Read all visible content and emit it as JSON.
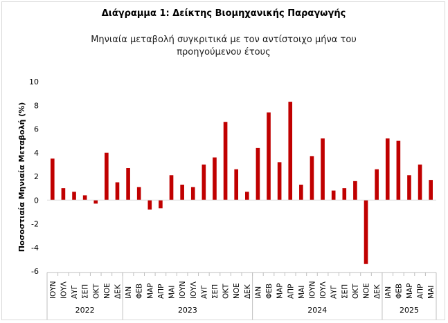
{
  "chart_data": {
    "type": "bar",
    "title": "Διάγραμμα 1: Δείκτης Βιομηχανικής Παραγωγής",
    "subtitle_lines": [
      "Μηνιαία μεταβολή συγκριτικά με τον αντίστοιχο μήνα του",
      "προηγούμενου έτους"
    ],
    "ylabel": "Ποσοστιαία Μηνιαία Μεταβολή (%)",
    "ylim": [
      -6,
      10
    ],
    "yticks": [
      -6,
      -4,
      -2,
      0,
      2,
      4,
      6,
      8,
      10
    ],
    "grid": false,
    "bar_color": "#c00000",
    "categories": [
      "ΙΟΥΝ",
      "ΙΟΥΛ",
      "ΑΥΓ",
      "ΣΕΠ",
      "ΟΚΤ",
      "ΝΟΕ",
      "ΔΕΚ",
      "ΙΑΝ",
      "ΦΕΒ",
      "ΜΑΡ",
      "ΑΠΡ",
      "ΜΑΙ",
      "ΙΟΥΝ",
      "ΙΟΥΛ",
      "ΑΥΓ",
      "ΣΕΠ",
      "ΟΚΤ",
      "ΝΟΕ",
      "ΔΕΚ",
      "ΙΑΝ",
      "ΦΕΒ",
      "ΜΑΡ",
      "ΑΠΡ",
      "ΜΑΙ",
      "ΙΟΥΝ",
      "ΙΟΥΛ",
      "ΑΥΓ",
      "ΣΕΠ",
      "ΟΚΤ",
      "ΝΟΕ",
      "ΔΕΚ",
      "ΙΑΝ",
      "ΦΕΒ",
      "ΜΑΡ",
      "ΑΠΡ",
      "ΜΑΙ"
    ],
    "values": [
      3.5,
      1.0,
      0.7,
      0.4,
      -0.3,
      4.0,
      1.5,
      2.7,
      1.1,
      -0.8,
      -0.7,
      2.1,
      1.3,
      1.1,
      3.0,
      3.6,
      6.6,
      2.6,
      0.7,
      4.4,
      7.4,
      3.2,
      8.3,
      1.3,
      3.7,
      5.2,
      0.8,
      1.0,
      1.6,
      -5.4,
      2.6,
      5.2,
      5.0,
      2.1,
      3.0,
      1.7
    ],
    "year_groups": [
      {
        "label": "2022",
        "count": 7
      },
      {
        "label": "2023",
        "count": 12
      },
      {
        "label": "2024",
        "count": 12
      },
      {
        "label": "2025",
        "count": 5
      }
    ]
  }
}
